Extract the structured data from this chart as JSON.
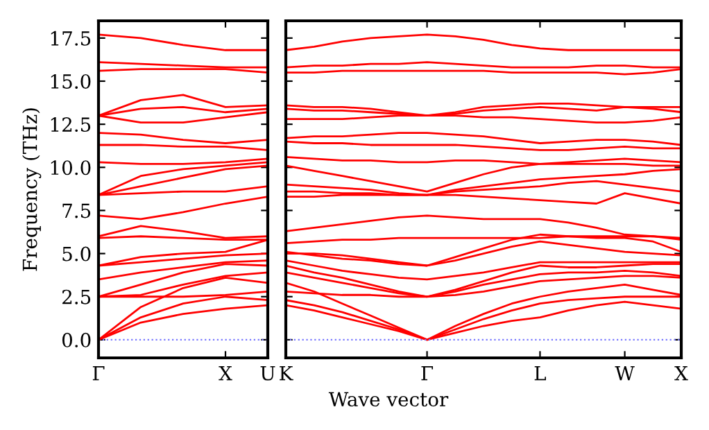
{
  "chart_data": [
    {
      "type": "line",
      "ylabel": "Frequency (THz)",
      "categories": [
        "Γ",
        null,
        null,
        "X",
        "U"
      ],
      "ylim": [
        -1.05,
        18.5
      ],
      "yticks": [
        {
          "value": 0,
          "label": "0.0"
        },
        2.5,
        {
          "value": 5,
          "label": "5.0"
        },
        7.5,
        {
          "value": 10,
          "label": "10.0"
        },
        12.5,
        {
          "value": 15,
          "label": "15.0"
        },
        17.5
      ],
      "marker": "none",
      "line_style": "solid",
      "ref_lines": [
        {
          "axis": "y",
          "value": 0,
          "color": "#7777ff",
          "line_style": "dotted"
        }
      ],
      "series": [
        {
          "color": "#ff0000",
          "values": [
            0,
            1.0,
            1.5,
            1.8,
            2.0
          ]
        },
        {
          "color": "#ff0000",
          "values": [
            0,
            1.3,
            2.1,
            2.5,
            2.3
          ]
        },
        {
          "color": "#ff0000",
          "values": [
            0,
            1.9,
            3.0,
            3.6,
            3.3
          ]
        },
        {
          "color": "#ff0000",
          "values": [
            2.5,
            2.5,
            2.5,
            2.6,
            2.8
          ]
        },
        {
          "color": "#ff0000",
          "values": [
            2.5,
            2.6,
            3.2,
            3.7,
            3.9
          ]
        },
        {
          "color": "#ff0000",
          "values": [
            2.5,
            3.2,
            3.9,
            4.4,
            4.3
          ]
        },
        {
          "color": "#ff0000",
          "values": [
            3.5,
            3.9,
            4.2,
            4.5,
            4.6
          ]
        },
        {
          "color": "#ff0000",
          "values": [
            4.3,
            4.5,
            4.7,
            4.9,
            5.0
          ]
        },
        {
          "color": "#ff0000",
          "values": [
            4.3,
            4.8,
            5.0,
            5.1,
            5.8
          ]
        },
        {
          "color": "#ff0000",
          "values": [
            5.9,
            6.0,
            5.9,
            5.8,
            5.8
          ]
        },
        {
          "color": "#ff0000",
          "values": [
            6.0,
            6.6,
            6.3,
            5.9,
            6.0
          ]
        },
        {
          "color": "#ff0000",
          "values": [
            7.2,
            7.0,
            7.4,
            7.9,
            8.3
          ]
        },
        {
          "color": "#ff0000",
          "values": [
            8.4,
            8.5,
            8.6,
            8.6,
            8.9
          ]
        },
        {
          "color": "#ff0000",
          "values": [
            8.4,
            8.9,
            9.4,
            9.9,
            10.1
          ]
        },
        {
          "color": "#ff0000",
          "values": [
            8.4,
            9.5,
            9.9,
            10.1,
            10.3
          ]
        },
        {
          "color": "#ff0000",
          "values": [
            10.3,
            10.2,
            10.2,
            10.3,
            10.5
          ]
        },
        {
          "color": "#ff0000",
          "values": [
            11.3,
            11.3,
            11.2,
            11.2,
            11.0
          ]
        },
        {
          "color": "#ff0000",
          "values": [
            12.0,
            11.9,
            11.6,
            11.4,
            11.6
          ]
        },
        {
          "color": "#ff0000",
          "values": [
            13.0,
            12.6,
            12.6,
            12.9,
            13.2
          ]
        },
        {
          "color": "#ff0000",
          "values": [
            13.0,
            13.4,
            13.5,
            13.2,
            13.4
          ]
        },
        {
          "color": "#ff0000",
          "values": [
            13.0,
            13.9,
            14.2,
            13.5,
            13.6
          ]
        },
        {
          "color": "#ff0000",
          "values": [
            15.6,
            15.7,
            15.7,
            15.7,
            15.5
          ]
        },
        {
          "color": "#ff0000",
          "values": [
            16.1,
            16.0,
            15.9,
            15.8,
            15.8
          ]
        },
        {
          "color": "#ff0000",
          "values": [
            17.7,
            17.5,
            17.1,
            16.8,
            16.8
          ]
        }
      ]
    },
    {
      "type": "line",
      "xlabel": "Wave vector",
      "categories": [
        "K",
        null,
        null,
        null,
        null,
        "Γ",
        null,
        null,
        null,
        "L",
        null,
        null,
        "W",
        null,
        "X"
      ],
      "ylim": [
        -1.05,
        18.5
      ],
      "yticks": [
        {
          "value": 0,
          "label": null
        },
        {
          "value": 2.5,
          "label": null
        },
        {
          "value": 5,
          "label": null
        },
        {
          "value": 7.5,
          "label": null
        },
        {
          "value": 10,
          "label": null
        },
        {
          "value": 12.5,
          "label": null
        },
        {
          "value": 15,
          "label": null
        },
        {
          "value": 17.5,
          "label": null
        }
      ],
      "tick_labels": "x",
      "marker": "none",
      "line_style": "solid",
      "ref_lines": [
        {
          "axis": "y",
          "value": 0,
          "color": "#7777ff",
          "line_style": "dotted"
        }
      ],
      "series": [
        {
          "color": "#ff0000",
          "values": [
            2.0,
            1.7,
            1.3,
            0.9,
            0.5,
            0,
            0.4,
            0.8,
            1.1,
            1.3,
            1.7,
            2.0,
            2.2,
            2.0,
            1.8
          ]
        },
        {
          "color": "#ff0000",
          "values": [
            2.3,
            2.0,
            1.6,
            1.1,
            0.6,
            0,
            0.6,
            1.2,
            1.7,
            2.1,
            2.3,
            2.4,
            2.5,
            2.5,
            2.5
          ]
        },
        {
          "color": "#ff0000",
          "values": [
            3.3,
            2.8,
            2.1,
            1.4,
            0.7,
            0,
            0.8,
            1.5,
            2.1,
            2.5,
            2.8,
            3.0,
            3.2,
            2.9,
            2.6
          ]
        },
        {
          "color": "#ff0000",
          "values": [
            2.8,
            2.7,
            2.6,
            2.6,
            2.5,
            2.5,
            2.6,
            2.8,
            3.1,
            3.4,
            3.5,
            3.6,
            3.7,
            3.7,
            3.6
          ]
        },
        {
          "color": "#ff0000",
          "values": [
            3.9,
            3.6,
            3.3,
            3.0,
            2.7,
            2.5,
            2.8,
            3.2,
            3.5,
            3.8,
            3.9,
            3.9,
            4.0,
            3.9,
            3.7
          ]
        },
        {
          "color": "#ff0000",
          "values": [
            4.3,
            3.9,
            3.6,
            3.2,
            2.8,
            2.5,
            2.9,
            3.4,
            3.9,
            4.3,
            4.2,
            4.2,
            4.3,
            4.4,
            4.4
          ]
        },
        {
          "color": "#ff0000",
          "values": [
            4.6,
            4.3,
            4.0,
            3.8,
            3.6,
            3.5,
            3.7,
            3.9,
            4.2,
            4.5,
            4.5,
            4.5,
            4.5,
            4.5,
            4.5
          ]
        },
        {
          "color": "#ff0000",
          "values": [
            5.0,
            5.0,
            4.9,
            4.7,
            4.5,
            4.3,
            4.6,
            5.0,
            5.4,
            5.7,
            5.5,
            5.3,
            5.1,
            5.0,
            4.9
          ]
        },
        {
          "color": "#ff0000",
          "values": [
            5.1,
            4.9,
            4.7,
            4.6,
            4.4,
            4.3,
            4.8,
            5.3,
            5.8,
            6.1,
            6.0,
            5.9,
            5.9,
            5.7,
            5.1
          ]
        },
        {
          "color": "#ff0000",
          "values": [
            5.6,
            5.7,
            5.8,
            5.8,
            5.9,
            5.9,
            5.9,
            5.9,
            5.9,
            5.9,
            6.0,
            6.0,
            6.0,
            6.0,
            5.8
          ]
        },
        {
          "color": "#ff0000",
          "values": [
            6.3,
            6.5,
            6.7,
            6.9,
            7.1,
            7.2,
            7.1,
            7.0,
            7.0,
            7.0,
            6.8,
            6.5,
            6.1,
            6.0,
            5.9
          ]
        },
        {
          "color": "#ff0000",
          "values": [
            8.3,
            8.3,
            8.4,
            8.4,
            8.4,
            8.4,
            8.4,
            8.3,
            8.2,
            8.1,
            8.0,
            7.9,
            8.5,
            8.2,
            7.9
          ]
        },
        {
          "color": "#ff0000",
          "values": [
            8.6,
            8.6,
            8.5,
            8.5,
            8.4,
            8.4,
            8.6,
            8.7,
            8.8,
            8.9,
            9.1,
            9.2,
            9.0,
            8.8,
            8.6
          ]
        },
        {
          "color": "#ff0000",
          "values": [
            9.0,
            8.9,
            8.8,
            8.7,
            8.5,
            8.4,
            8.7,
            8.9,
            9.1,
            9.3,
            9.4,
            9.5,
            9.6,
            9.8,
            9.9
          ]
        },
        {
          "color": "#ff0000",
          "values": [
            10.1,
            9.8,
            9.5,
            9.2,
            8.9,
            8.6,
            9.1,
            9.6,
            10.0,
            10.2,
            10.2,
            10.2,
            10.2,
            10.1,
            10.1
          ]
        },
        {
          "color": "#ff0000",
          "values": [
            10.6,
            10.5,
            10.4,
            10.4,
            10.3,
            10.3,
            10.4,
            10.4,
            10.3,
            10.2,
            10.3,
            10.4,
            10.5,
            10.4,
            10.3
          ]
        },
        {
          "color": "#ff0000",
          "values": [
            11.5,
            11.4,
            11.4,
            11.3,
            11.3,
            11.3,
            11.3,
            11.2,
            11.1,
            11.0,
            11.0,
            11.1,
            11.2,
            11.1,
            11.1
          ]
        },
        {
          "color": "#ff0000",
          "values": [
            11.7,
            11.8,
            11.8,
            11.9,
            12.0,
            12.0,
            11.9,
            11.8,
            11.6,
            11.4,
            11.5,
            11.6,
            11.6,
            11.5,
            11.3
          ]
        },
        {
          "color": "#ff0000",
          "values": [
            12.8,
            12.8,
            12.8,
            12.9,
            13.0,
            13.0,
            13.0,
            12.9,
            12.9,
            12.8,
            12.7,
            12.6,
            12.6,
            12.7,
            12.9
          ]
        },
        {
          "color": "#ff0000",
          "values": [
            13.4,
            13.3,
            13.3,
            13.2,
            13.1,
            13.0,
            13.1,
            13.3,
            13.4,
            13.5,
            13.4,
            13.3,
            13.5,
            13.4,
            13.2
          ]
        },
        {
          "color": "#ff0000",
          "values": [
            13.6,
            13.5,
            13.5,
            13.4,
            13.2,
            13.0,
            13.2,
            13.5,
            13.6,
            13.7,
            13.7,
            13.6,
            13.5,
            13.5,
            13.5
          ]
        },
        {
          "color": "#ff0000",
          "values": [
            15.5,
            15.5,
            15.6,
            15.6,
            15.6,
            15.6,
            15.6,
            15.6,
            15.5,
            15.5,
            15.5,
            15.5,
            15.4,
            15.5,
            15.7
          ]
        },
        {
          "color": "#ff0000",
          "values": [
            15.8,
            15.9,
            15.9,
            16.0,
            16.0,
            16.1,
            16.0,
            15.9,
            15.8,
            15.8,
            15.8,
            15.9,
            15.9,
            15.8,
            15.8
          ]
        },
        {
          "color": "#ff0000",
          "values": [
            16.8,
            17.0,
            17.3,
            17.5,
            17.6,
            17.7,
            17.6,
            17.4,
            17.1,
            16.9,
            16.8,
            16.8,
            16.8,
            16.8,
            16.8
          ]
        }
      ]
    }
  ]
}
